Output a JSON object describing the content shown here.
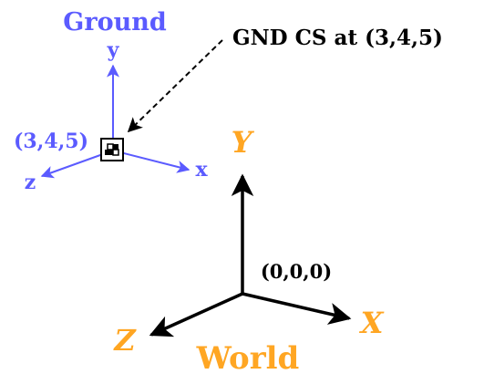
{
  "ground": {
    "title": "Ground",
    "axis_x": "x",
    "axis_y": "y",
    "axis_z": "z",
    "origin_label": "(3,4,5)",
    "color": "#5b5bff"
  },
  "world": {
    "title": "World",
    "axis_x": "X",
    "axis_y": "Y",
    "axis_z": "Z",
    "origin_label": "(0,0,0)",
    "label_color": "#ffa623",
    "axis_color": "#000000"
  },
  "annotation": {
    "text": "GND CS at (3,4,5)"
  }
}
